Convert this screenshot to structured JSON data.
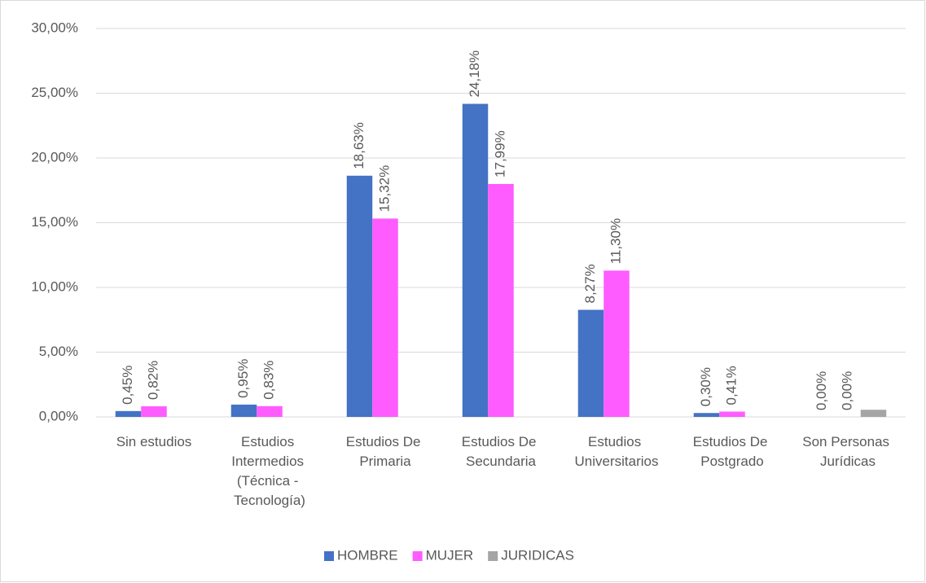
{
  "chart_data": {
    "type": "bar",
    "categories": [
      "Sin estudios",
      "Estudios Intermedios (Técnica - Tecnología)",
      "Estudios De Primaria",
      "Estudios De Secundaria",
      "Estudios Universitarios",
      "Estudios De Postgrado",
      "Son Personas Jurídicas"
    ],
    "series": [
      {
        "name": "HOMBRE",
        "color": "#4472c4",
        "values": [
          0.45,
          0.95,
          18.63,
          24.18,
          8.27,
          0.3,
          0.0
        ],
        "value_labels": [
          "0,45%",
          "0,95%",
          "18,63%",
          "24,18%",
          "8,27%",
          "0,30%",
          "0,00%"
        ]
      },
      {
        "name": "MUJER",
        "color": "#ff5cff",
        "values": [
          0.82,
          0.83,
          15.32,
          17.99,
          11.3,
          0.41,
          0.0
        ],
        "value_labels": [
          "0,82%",
          "0,83%",
          "15,32%",
          "17,99%",
          "11,30%",
          "0,41%",
          "0,00%"
        ]
      },
      {
        "name": "JURIDICAS",
        "color": "#a5a5a5",
        "values": [
          null,
          null,
          null,
          null,
          null,
          null,
          0.55
        ]
      }
    ],
    "ylim": [
      0,
      30
    ],
    "yticks": [
      {
        "value": 0,
        "label": "0,00%"
      },
      {
        "value": 5,
        "label": "5,00%"
      },
      {
        "value": 10,
        "label": "10,00%"
      },
      {
        "value": 15,
        "label": "15,00%"
      },
      {
        "value": 20,
        "label": "20,00%"
      },
      {
        "value": 25,
        "label": "25,00%"
      },
      {
        "value": 30,
        "label": "30,00%"
      }
    ],
    "grid": true,
    "legend": "bottom"
  }
}
